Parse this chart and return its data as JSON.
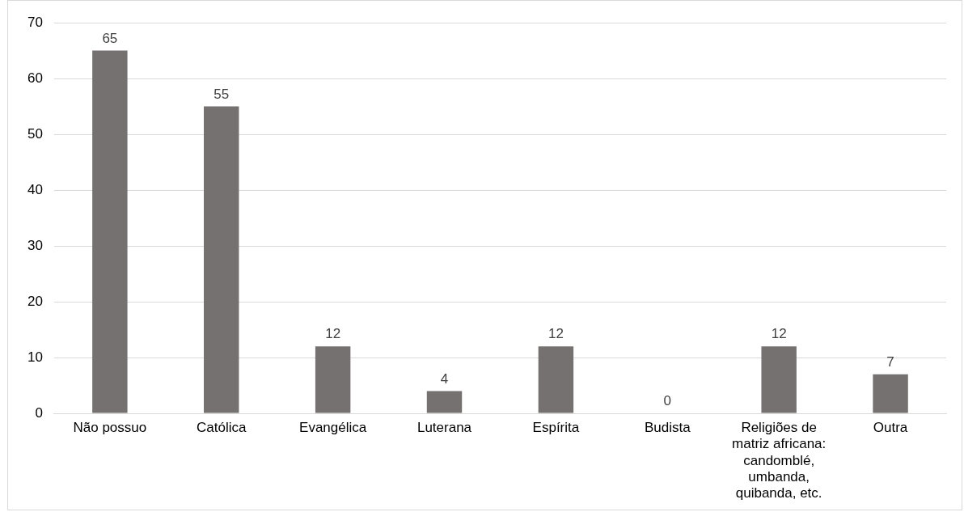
{
  "chart_data": {
    "type": "bar",
    "categories": [
      "Não possuo",
      "Católica",
      "Evangélica",
      "Luterana",
      "Espírita",
      "Budista",
      "Religiões de matriz africana: candomblé, umbanda, quibanda, etc.",
      "Outra"
    ],
    "values": [
      65,
      55,
      12,
      4,
      12,
      0,
      12,
      7
    ],
    "color": "#767171",
    "ylim": [
      0,
      70
    ],
    "yticks": [
      0,
      10,
      20,
      30,
      40,
      50,
      60,
      70
    ],
    "grid": "y",
    "data_labels": true
  }
}
